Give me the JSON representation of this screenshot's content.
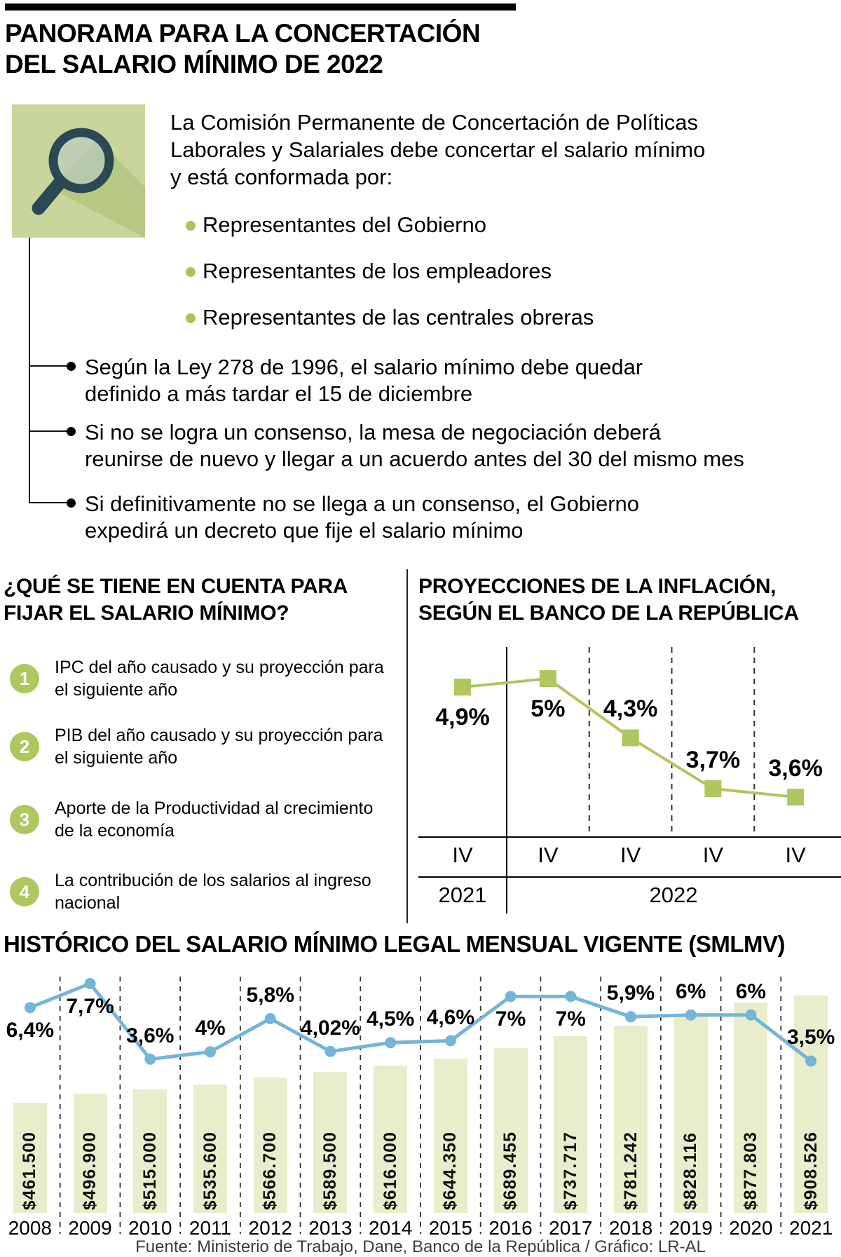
{
  "colors": {
    "green": "#aec75f",
    "bar_green": "#e9edcb",
    "icon_bg": "#c9d69b",
    "icon_fg": "#2c4854",
    "blue": "#74b5d8"
  },
  "header": {
    "title": [
      "PANORAMA PARA LA CONCERTACIÓN",
      "DEL SALARIO MÍNIMO DE 2022"
    ]
  },
  "intro": {
    "icon": "magnifier-icon",
    "text": [
      "La Comisión Permanente de Concertación de Políticas",
      "Laborales y Salariales debe concertar el salario mínimo",
      "y está conformada por:"
    ],
    "members": [
      "Representantes del Gobierno",
      "Representantes de los empleadores",
      "Representantes de las centrales obreras"
    ],
    "rules": [
      [
        "Según la Ley 278 de 1996, el salario mínimo debe quedar",
        "definido a más tardar el 15 de diciembre"
      ],
      [
        "Si no se logra un consenso, la mesa de negociación deberá",
        "reunirse de nuevo y llegar a un acuerdo antes del 30 del mismo mes"
      ],
      [
        "Si definitivamente no se llega a un consenso, el Gobierno",
        "expedirá un decreto que fije el salario mínimo"
      ]
    ]
  },
  "factors": {
    "title": [
      "¿QUÉ SE TIENE EN CUENTA PARA",
      "FIJAR EL SALARIO MÍNIMO?"
    ],
    "items": [
      {
        "num": "1",
        "text": [
          "IPC del año causado y su proyección para",
          "el siguiente año"
        ]
      },
      {
        "num": "2",
        "text": [
          "PIB del año causado y su proyección para",
          "el siguiente año"
        ]
      },
      {
        "num": "3",
        "text": [
          "Aporte de la Productividad al crecimiento",
          "de la economía"
        ]
      },
      {
        "num": "4",
        "text": [
          "La contribución de los salarios al ingreso",
          "nacional"
        ]
      }
    ]
  },
  "chart_data": [
    {
      "type": "line",
      "title": [
        "PROYECCIONES DE LA INFLACIÓN,",
        "SEGÚN EL BANCO DE LA REPÚBLICA"
      ],
      "x_tick": "IV",
      "year_groups": [
        {
          "label": "2021",
          "cols": 1
        },
        {
          "label": "2022",
          "cols": 4
        }
      ],
      "marker": "square",
      "line_color": "#aec75f",
      "grid": "dashed-vertical",
      "ylim": [
        3.0,
        5.4
      ],
      "points": [
        {
          "value": 4.9,
          "label": "4,9%",
          "label_pos": "below"
        },
        {
          "value": 5.0,
          "label": "5%",
          "label_pos": "below"
        },
        {
          "value": 4.3,
          "label": "4,3%",
          "label_pos": "above"
        },
        {
          "value": 3.7,
          "label": "3,7%",
          "label_pos": "above"
        },
        {
          "value": 3.6,
          "label": "3,6%",
          "label_pos": "above"
        }
      ]
    },
    {
      "type": "bar+line",
      "title": "HISTÓRICO DEL SALARIO MÍNIMO LEGAL MENSUAL VIGENTE (SMLMV)",
      "bar_color": "#e9edcb",
      "line_color": "#74b5d8",
      "grid": "dashed-vertical",
      "points": [
        {
          "year": "2008",
          "salary": 461500,
          "salary_label": "$461.500",
          "pct": 6.4,
          "pct_label": "6,4%",
          "label_pos": "below"
        },
        {
          "year": "2009",
          "salary": 496900,
          "salary_label": "$496.900",
          "pct": 7.7,
          "pct_label": "7,7%",
          "label_pos": "below"
        },
        {
          "year": "2010",
          "salary": 515000,
          "salary_label": "$515.000",
          "pct": 3.6,
          "pct_label": "3,6%",
          "label_pos": "above"
        },
        {
          "year": "2011",
          "salary": 535600,
          "salary_label": "$535.600",
          "pct": 4.0,
          "pct_label": "4%",
          "label_pos": "above"
        },
        {
          "year": "2012",
          "salary": 566700,
          "salary_label": "$566.700",
          "pct": 5.8,
          "pct_label": "5,8%",
          "label_pos": "above"
        },
        {
          "year": "2013",
          "salary": 589500,
          "salary_label": "$589.500",
          "pct": 4.02,
          "pct_label": "4,02%",
          "label_pos": "above"
        },
        {
          "year": "2014",
          "salary": 616000,
          "salary_label": "$616.000",
          "pct": 4.5,
          "pct_label": "4,5%",
          "label_pos": "above"
        },
        {
          "year": "2015",
          "salary": 644350,
          "salary_label": "$644.350",
          "pct": 4.6,
          "pct_label": "4,6%",
          "label_pos": "above"
        },
        {
          "year": "2016",
          "salary": 689455,
          "salary_label": "$689.455",
          "pct": 7.0,
          "pct_label": "7%",
          "label_pos": "below"
        },
        {
          "year": "2017",
          "salary": 737717,
          "salary_label": "$737.717",
          "pct": 7.0,
          "pct_label": "7%",
          "label_pos": "below"
        },
        {
          "year": "2018",
          "salary": 781242,
          "salary_label": "$781.242",
          "pct": 5.9,
          "pct_label": "5,9%",
          "label_pos": "above"
        },
        {
          "year": "2019",
          "salary": 828116,
          "salary_label": "$828.116",
          "pct": 6.0,
          "pct_label": "6%",
          "label_pos": "above"
        },
        {
          "year": "2020",
          "salary": 877803,
          "salary_label": "$877.803",
          "pct": 6.0,
          "pct_label": "6%",
          "label_pos": "above"
        },
        {
          "year": "2021",
          "salary": 908526,
          "salary_label": "$908.526",
          "pct": 3.5,
          "pct_label": "3,5%",
          "label_pos": "above"
        }
      ]
    }
  ],
  "footer": "Fuente: Ministerio de Trabajo, Dane, Banco de la República / Gráfico: LR-AL"
}
